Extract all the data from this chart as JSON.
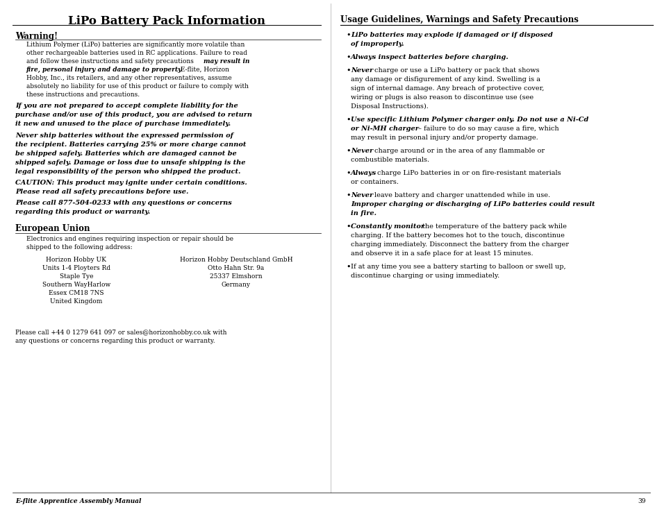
{
  "bg_color": "#ffffff",
  "title": "LiPo Battery Pack Information",
  "page_number": "39",
  "footer_left": "E-flite Apprentice Assembly Manual"
}
